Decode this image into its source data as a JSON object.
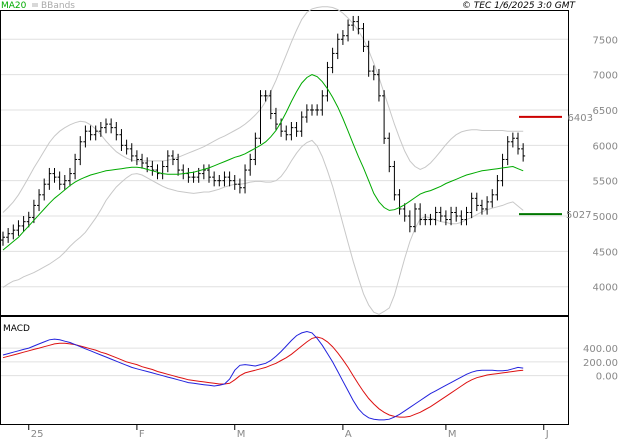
{
  "header": {
    "ma_label": "MA20",
    "bb_label": "BBands",
    "source_label": "© TEC 1/6/2025 3:0 GMT"
  },
  "macd_panel": {
    "label": "MACD"
  },
  "colors": {
    "price": "#000000",
    "ma20": "#00aa00",
    "bbands": "#c8c8c8",
    "macd": "#2222dd",
    "signal": "#dd1111",
    "resistance": "#cc0000",
    "support": "#007700",
    "grid": "#e0e0e0"
  },
  "chart_data": [
    {
      "type": "ohlc",
      "name": "price-chart",
      "ylim": [
        3600,
        7900
      ],
      "y_ticks": [
        4000,
        4500,
        5000,
        5500,
        6000,
        6500,
        7000,
        7500
      ],
      "x_ticks": [
        "25",
        "F",
        "M",
        "A",
        "M",
        "J"
      ],
      "x_tick_index": [
        5,
        26,
        45,
        66,
        86,
        105
      ],
      "series": [
        {
          "name": "MA20",
          "values": [
            4520,
            4580,
            4640,
            4700,
            4780,
            4860,
            4940,
            5020,
            5100,
            5180,
            5250,
            5310,
            5370,
            5430,
            5480,
            5520,
            5550,
            5580,
            5600,
            5620,
            5640,
            5650,
            5660,
            5670,
            5680,
            5690,
            5690,
            5680,
            5660,
            5640,
            5620,
            5600,
            5590,
            5590,
            5590,
            5600,
            5610,
            5620,
            5640,
            5660,
            5680,
            5710,
            5740,
            5770,
            5800,
            5830,
            5850,
            5880,
            5920,
            5960,
            6000,
            6050,
            6120,
            6210,
            6330,
            6470,
            6620,
            6760,
            6880,
            6960,
            7000,
            6970,
            6900,
            6800,
            6680,
            6540,
            6380,
            6200,
            6020,
            5840,
            5680,
            5500,
            5320,
            5200,
            5120,
            5080,
            5090,
            5120,
            5160,
            5210,
            5260,
            5310,
            5340,
            5360,
            5390,
            5420,
            5460,
            5490,
            5520,
            5550,
            5580,
            5600,
            5620,
            5640,
            5650,
            5660,
            5670,
            5680,
            5690,
            5700,
            5670,
            5640
          ]
        },
        {
          "name": "BB upper",
          "values": [
            5050,
            5120,
            5200,
            5300,
            5420,
            5550,
            5680,
            5800,
            5920,
            6040,
            6130,
            6200,
            6250,
            6290,
            6320,
            6340,
            6330,
            6290,
            6230,
            6150,
            6060,
            5980,
            5910,
            5860,
            5820,
            5790,
            5780,
            5780,
            5780,
            5780,
            5780,
            5780,
            5790,
            5810,
            5830,
            5860,
            5890,
            5920,
            5950,
            5980,
            6020,
            6060,
            6100,
            6130,
            6170,
            6210,
            6250,
            6300,
            6360,
            6430,
            6510,
            6620,
            6760,
            6920,
            7100,
            7280,
            7460,
            7630,
            7780,
            7880,
            7930,
            7950,
            7960,
            7960,
            7950,
            7920,
            7870,
            7800,
            7720,
            7620,
            7500,
            7340,
            7160,
            6960,
            6740,
            6520,
            6300,
            6100,
            5920,
            5780,
            5700,
            5660,
            5690,
            5750,
            5830,
            5920,
            6010,
            6090,
            6150,
            6190,
            6210,
            6220,
            6220,
            6210,
            6210,
            6210,
            6210,
            6210,
            6200,
            6200,
            6200,
            6200
          ]
        },
        {
          "name": "BB lower",
          "values": [
            3990,
            4040,
            4080,
            4100,
            4140,
            4170,
            4200,
            4240,
            4280,
            4320,
            4370,
            4420,
            4490,
            4570,
            4640,
            4700,
            4770,
            4870,
            4970,
            5090,
            5220,
            5320,
            5410,
            5480,
            5540,
            5590,
            5600,
            5580,
            5540,
            5500,
            5460,
            5420,
            5390,
            5370,
            5350,
            5340,
            5330,
            5320,
            5330,
            5340,
            5340,
            5360,
            5380,
            5410,
            5430,
            5450,
            5450,
            5460,
            5480,
            5490,
            5490,
            5480,
            5480,
            5500,
            5560,
            5660,
            5780,
            5890,
            5980,
            6040,
            6070,
            5990,
            5840,
            5640,
            5420,
            5160,
            4890,
            4620,
            4360,
            4120,
            3900,
            3740,
            3640,
            3610,
            3650,
            3700,
            3880,
            4140,
            4400,
            4640,
            4820,
            4960,
            4990,
            4970,
            4950,
            4920,
            4910,
            4890,
            4890,
            4910,
            4950,
            4980,
            5020,
            5060,
            5090,
            5110,
            5130,
            5150,
            5180,
            5200,
            5140,
            5080
          ]
        }
      ],
      "ohlc_close": [
        4700,
        4750,
        4800,
        4860,
        4920,
        4980,
        5150,
        5300,
        5450,
        5600,
        5550,
        5450,
        5500,
        5600,
        5800,
        6050,
        6200,
        6150,
        6200,
        6250,
        6300,
        6250,
        6150,
        6000,
        5950,
        5850,
        5800,
        5750,
        5700,
        5650,
        5600,
        5700,
        5850,
        5800,
        5650,
        5600,
        5550,
        5550,
        5600,
        5650,
        5550,
        5500,
        5500,
        5550,
        5500,
        5450,
        5400,
        5650,
        5800,
        6100,
        6700,
        6700,
        6450,
        6300,
        6200,
        6150,
        6250,
        6200,
        6400,
        6500,
        6500,
        6500,
        6700,
        7100,
        7300,
        7500,
        7550,
        7700,
        7750,
        7650,
        7400,
        7050,
        7000,
        6700,
        6100,
        5700,
        5300,
        5100,
        5000,
        4850,
        5100,
        4950,
        4950,
        4950,
        5050,
        5000,
        4950,
        5050,
        5000,
        4950,
        5050,
        5250,
        5150,
        5100,
        5200,
        5300,
        5500,
        5800,
        6050,
        6100,
        5950,
        5850
      ]
    },
    {
      "type": "line",
      "name": "macd-chart",
      "ylim": [
        -700,
        850
      ],
      "y_ticks": [
        0,
        200,
        400
      ],
      "series": [
        {
          "name": "MACD",
          "values": [
            300,
            320,
            340,
            360,
            380,
            400,
            430,
            460,
            490,
            520,
            530,
            520,
            500,
            480,
            450,
            420,
            390,
            360,
            330,
            300,
            270,
            240,
            210,
            180,
            150,
            120,
            100,
            80,
            60,
            40,
            20,
            0,
            -20,
            -40,
            -60,
            -80,
            -100,
            -110,
            -120,
            -130,
            -140,
            -150,
            -140,
            -120,
            -50,
            80,
            150,
            160,
            150,
            140,
            160,
            180,
            220,
            280,
            350,
            430,
            510,
            580,
            620,
            640,
            620,
            540,
            440,
            320,
            200,
            60,
            -80,
            -220,
            -360,
            -480,
            -560,
            -610,
            -630,
            -640,
            -640,
            -630,
            -600,
            -560,
            -510,
            -460,
            -410,
            -360,
            -310,
            -260,
            -220,
            -180,
            -140,
            -100,
            -60,
            -20,
            20,
            50,
            70,
            80,
            80,
            80,
            70,
            70,
            80,
            100,
            120,
            110
          ]
        },
        {
          "name": "Signal",
          "values": [
            260,
            280,
            300,
            320,
            340,
            360,
            380,
            400,
            420,
            440,
            460,
            470,
            470,
            460,
            450,
            430,
            410,
            390,
            370,
            340,
            320,
            290,
            260,
            230,
            200,
            180,
            160,
            130,
            110,
            90,
            60,
            40,
            20,
            0,
            -20,
            -40,
            -60,
            -70,
            -80,
            -90,
            -100,
            -110,
            -120,
            -120,
            -110,
            -60,
            0,
            40,
            60,
            80,
            100,
            120,
            150,
            180,
            220,
            260,
            310,
            370,
            430,
            490,
            540,
            560,
            540,
            490,
            420,
            330,
            230,
            120,
            0,
            -120,
            -230,
            -330,
            -410,
            -480,
            -530,
            -570,
            -590,
            -600,
            -600,
            -590,
            -560,
            -530,
            -490,
            -450,
            -400,
            -350,
            -300,
            -250,
            -200,
            -150,
            -100,
            -60,
            -30,
            -10,
            10,
            20,
            30,
            40,
            50,
            60,
            70,
            80
          ]
        }
      ]
    }
  ],
  "levels": [
    {
      "name": "resistance",
      "value": 6403,
      "label": "6403"
    },
    {
      "name": "support",
      "value": 5027,
      "label": "5027"
    }
  ]
}
